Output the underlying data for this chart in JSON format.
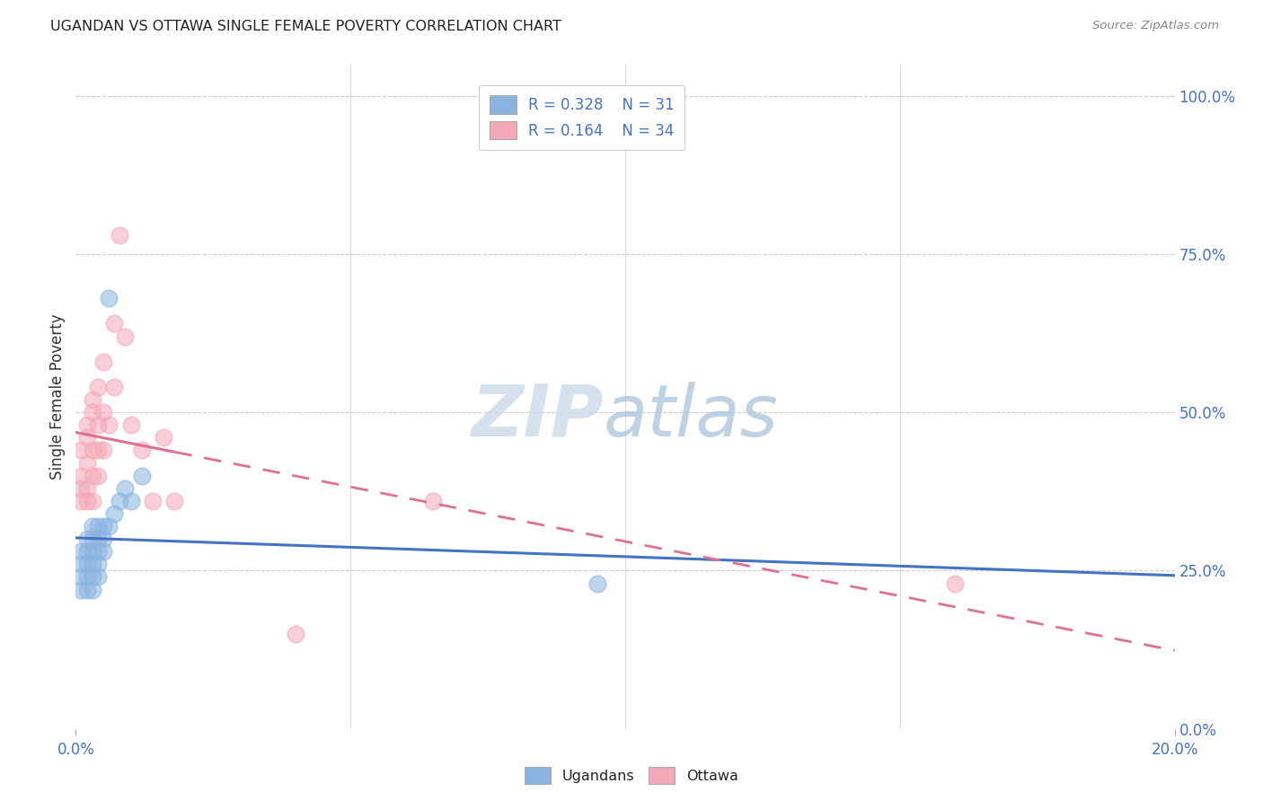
{
  "title": "UGANDAN VS OTTAWA SINGLE FEMALE POVERTY CORRELATION CHART",
  "source": "Source: ZipAtlas.com",
  "ylabel": "Single Female Poverty",
  "ylabel_right_ticks": [
    "0.0%",
    "25.0%",
    "50.0%",
    "75.0%",
    "100.0%"
  ],
  "ylabel_right_vals": [
    0.0,
    0.25,
    0.5,
    0.75,
    1.0
  ],
  "ugandan_color": "#8ab4e0",
  "ottawa_color": "#f4a8b8",
  "ugandan_line_color": "#4472c4",
  "ottawa_line_color": "#e07090",
  "background_color": "#ffffff",
  "grid_color": "#cccccc",
  "xlim": [
    0.0,
    0.2
  ],
  "ylim": [
    0.0,
    1.05
  ],
  "ugandan_pts": [
    [
      0.001,
      0.22
    ],
    [
      0.001,
      0.24
    ],
    [
      0.001,
      0.26
    ],
    [
      0.001,
      0.28
    ],
    [
      0.002,
      0.22
    ],
    [
      0.002,
      0.24
    ],
    [
      0.002,
      0.26
    ],
    [
      0.002,
      0.28
    ],
    [
      0.002,
      0.3
    ],
    [
      0.003,
      0.22
    ],
    [
      0.003,
      0.24
    ],
    [
      0.003,
      0.26
    ],
    [
      0.003,
      0.28
    ],
    [
      0.003,
      0.3
    ],
    [
      0.003,
      0.32
    ],
    [
      0.004,
      0.24
    ],
    [
      0.004,
      0.26
    ],
    [
      0.004,
      0.28
    ],
    [
      0.004,
      0.3
    ],
    [
      0.004,
      0.32
    ],
    [
      0.005,
      0.28
    ],
    [
      0.005,
      0.3
    ],
    [
      0.005,
      0.32
    ],
    [
      0.006,
      0.32
    ],
    [
      0.007,
      0.34
    ],
    [
      0.008,
      0.36
    ],
    [
      0.009,
      0.38
    ],
    [
      0.01,
      0.36
    ],
    [
      0.012,
      0.4
    ],
    [
      0.095,
      0.23
    ],
    [
      0.006,
      0.68
    ]
  ],
  "ottawa_pts": [
    [
      0.001,
      0.36
    ],
    [
      0.001,
      0.38
    ],
    [
      0.001,
      0.4
    ],
    [
      0.001,
      0.44
    ],
    [
      0.002,
      0.36
    ],
    [
      0.002,
      0.38
    ],
    [
      0.002,
      0.42
    ],
    [
      0.002,
      0.46
    ],
    [
      0.002,
      0.48
    ],
    [
      0.003,
      0.36
    ],
    [
      0.003,
      0.4
    ],
    [
      0.003,
      0.44
    ],
    [
      0.003,
      0.5
    ],
    [
      0.003,
      0.52
    ],
    [
      0.004,
      0.4
    ],
    [
      0.004,
      0.44
    ],
    [
      0.004,
      0.48
    ],
    [
      0.004,
      0.54
    ],
    [
      0.005,
      0.44
    ],
    [
      0.005,
      0.5
    ],
    [
      0.005,
      0.58
    ],
    [
      0.006,
      0.48
    ],
    [
      0.007,
      0.54
    ],
    [
      0.007,
      0.64
    ],
    [
      0.008,
      0.78
    ],
    [
      0.009,
      0.62
    ],
    [
      0.01,
      0.48
    ],
    [
      0.012,
      0.44
    ],
    [
      0.014,
      0.36
    ],
    [
      0.016,
      0.46
    ],
    [
      0.018,
      0.36
    ],
    [
      0.04,
      0.15
    ],
    [
      0.065,
      0.36
    ],
    [
      0.16,
      0.23
    ]
  ]
}
